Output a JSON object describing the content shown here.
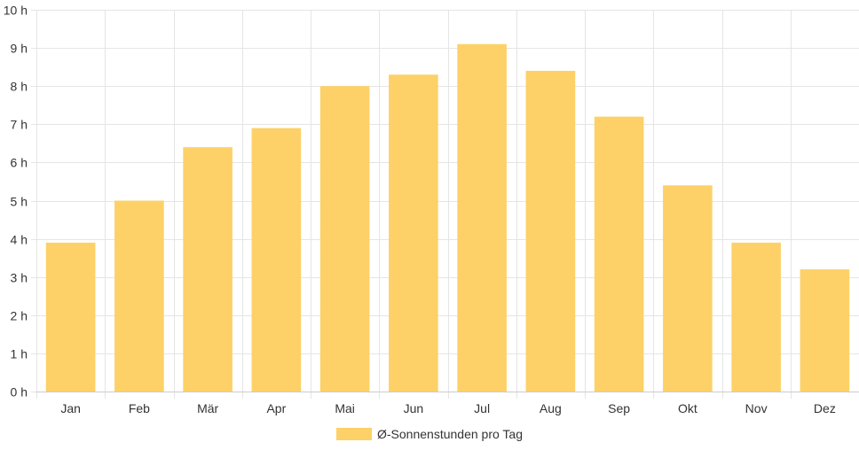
{
  "chart_data": {
    "type": "bar",
    "categories": [
      "Jan",
      "Feb",
      "Mär",
      "Apr",
      "Mai",
      "Jun",
      "Jul",
      "Aug",
      "Sep",
      "Okt",
      "Nov",
      "Dez"
    ],
    "series": [
      {
        "name": "Ø-Sonnenstunden pro Tag",
        "values": [
          3.9,
          5.0,
          6.4,
          6.9,
          8.0,
          8.3,
          9.1,
          8.4,
          7.2,
          5.4,
          3.9,
          3.2
        ]
      }
    ],
    "ylim": [
      0,
      10
    ],
    "yticks": [
      0,
      1,
      2,
      3,
      4,
      5,
      6,
      7,
      8,
      9,
      10
    ],
    "y_tick_suffix": " h",
    "grid": true,
    "legend_position": "bottom",
    "colors": {
      "bar": "#fdd168",
      "grid": "#e5e5e5",
      "axis": "#cccccc"
    }
  }
}
